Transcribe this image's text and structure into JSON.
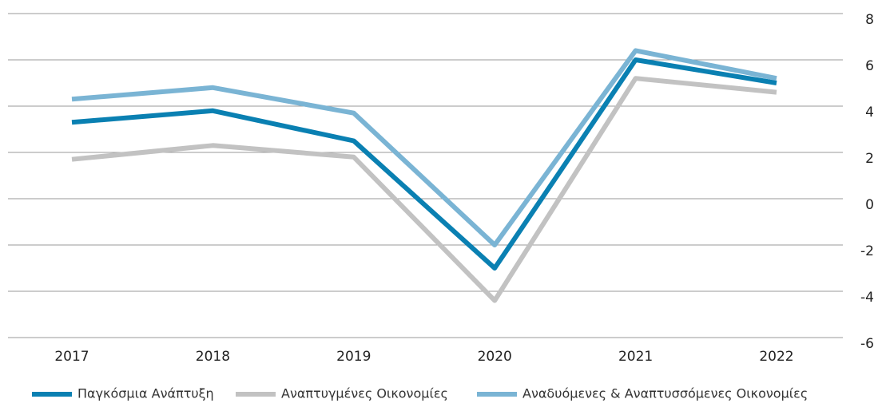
{
  "chart_data": {
    "type": "line",
    "categories": [
      "2017",
      "2018",
      "2019",
      "2020",
      "2021",
      "2022"
    ],
    "series": [
      {
        "name": "Παγκόσμια Ανάπτυξη",
        "color": "#0a80b2",
        "values": [
          3.3,
          3.8,
          2.5,
          -3.0,
          6.0,
          5.0
        ]
      },
      {
        "name": "Αναπτυγμένες Οικονομίες",
        "color": "#c2c2c2",
        "values": [
          1.7,
          2.3,
          1.8,
          -4.4,
          5.2,
          4.6
        ]
      },
      {
        "name": "Αναδυόμενες & Αναπτυσσόμενες Οικονομίες",
        "color": "#7ab4d4",
        "values": [
          4.3,
          4.8,
          3.7,
          -2.0,
          6.4,
          5.2
        ]
      }
    ],
    "ylim": [
      -6,
      8
    ],
    "yticks": [
      -6,
      -4,
      -2,
      0,
      2,
      4,
      6,
      8
    ],
    "grid": true,
    "legend": "bottom"
  }
}
